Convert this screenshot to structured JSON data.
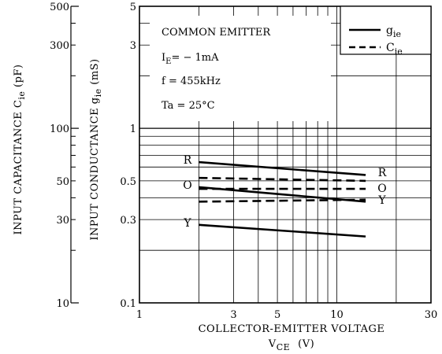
{
  "chart_data": {
    "type": "line",
    "xscale": "log",
    "yscale": "log",
    "x_ticks": [
      "1",
      "3",
      "5",
      "10",
      "30"
    ],
    "xlabel": "COLLECTOR-EMITTER VOLTAGE",
    "xlabel2": {
      "base": "V",
      "sub": "CE",
      "rest": "(V)"
    },
    "xlim": [
      1,
      30
    ],
    "ylim_gie": [
      0.1,
      5
    ],
    "ylim_cie": [
      10,
      500
    ],
    "gie_ticks": [
      "5",
      "3",
      "1",
      "0.5",
      "0.3",
      "0.1"
    ],
    "cie_ticks": [
      "500",
      "300",
      "100",
      "50",
      "30",
      "10"
    ],
    "ylabel_gie": {
      "base": "INPUT CONDUCTANCE   g",
      "sub": "ie",
      "rest": "  (mS)"
    },
    "ylabel_cie": {
      "base": "INPUT CAPACITANCE   C",
      "sub": "ie",
      "rest": "  (pF)"
    },
    "conditions": {
      "line1": "COMMON EMITTER",
      "line2a": "I",
      "line2sub": "E",
      "line2b": "= − 1mA",
      "line3": "f = 455kHz",
      "line4": "Ta = 25°C"
    },
    "legend": [
      {
        "base": "g",
        "sub": "ie",
        "style": "solid"
      },
      {
        "base": "C",
        "sub": "ie",
        "style": "dashed"
      }
    ],
    "series": [
      {
        "name": "R",
        "kind": "gie",
        "x": [
          2,
          14
        ],
        "values": [
          0.64,
          0.54
        ]
      },
      {
        "name": "O",
        "kind": "gie",
        "x": [
          2,
          14
        ],
        "values": [
          0.46,
          0.38
        ]
      },
      {
        "name": "Y",
        "kind": "gie",
        "x": [
          2,
          14
        ],
        "values": [
          0.28,
          0.24
        ]
      },
      {
        "name": "R",
        "kind": "cie",
        "x": [
          2,
          14
        ],
        "values": [
          52,
          50
        ]
      },
      {
        "name": "O",
        "kind": "cie",
        "x": [
          2,
          14
        ],
        "values": [
          45,
          45
        ]
      },
      {
        "name": "Y",
        "kind": "cie",
        "x": [
          2,
          14
        ],
        "values": [
          38,
          39
        ]
      }
    ],
    "curve_labels_left": [
      "R",
      "O",
      "Y"
    ],
    "curve_labels_right": [
      "R",
      "O",
      "Y"
    ]
  }
}
